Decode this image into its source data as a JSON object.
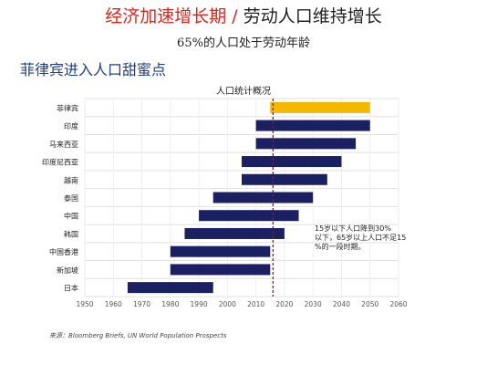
{
  "header": {
    "title_red": "经济加速增长期",
    "title_sep": " / ",
    "title_dark": "劳动人口维持增长",
    "subtitle": "65%的人口处于劳动年龄"
  },
  "section_heading": "菲律宾进入人口甜蜜点",
  "source": "来源：Bloomberg  Briefs, UN World Population  Prospects",
  "colors": {
    "bar": "#1b2063",
    "highlight": "#f5b800",
    "marker": "#8b1a1a",
    "grid": "#e0e0e0"
  },
  "chart_data": {
    "type": "bar",
    "orientation": "horizontal",
    "title": "人口统计概况",
    "categories": [
      "菲律宾",
      "印度",
      "马来西亚",
      "印度尼西亚",
      "越南",
      "泰国",
      "中国",
      "韩国",
      "中国香港",
      "新加坡",
      "日本"
    ],
    "ranges": [
      [
        2015,
        2050
      ],
      [
        2010,
        2050
      ],
      [
        2010,
        2045
      ],
      [
        2005,
        2040
      ],
      [
        2005,
        2035
      ],
      [
        1995,
        2030
      ],
      [
        1990,
        2025
      ],
      [
        1985,
        2020
      ],
      [
        1980,
        2015
      ],
      [
        1980,
        2015
      ],
      [
        1965,
        1995
      ]
    ],
    "highlight_category": "菲律宾",
    "xlim": [
      1950,
      2060
    ],
    "xticks": [
      1950,
      1960,
      1970,
      1980,
      1990,
      2000,
      2010,
      2020,
      2030,
      2040,
      2050,
      2060
    ],
    "reference_line_x": 2016,
    "annotation": "15岁以下人口降到30%以下，65岁以上人口不足15%的一段时期。",
    "grid": true
  }
}
